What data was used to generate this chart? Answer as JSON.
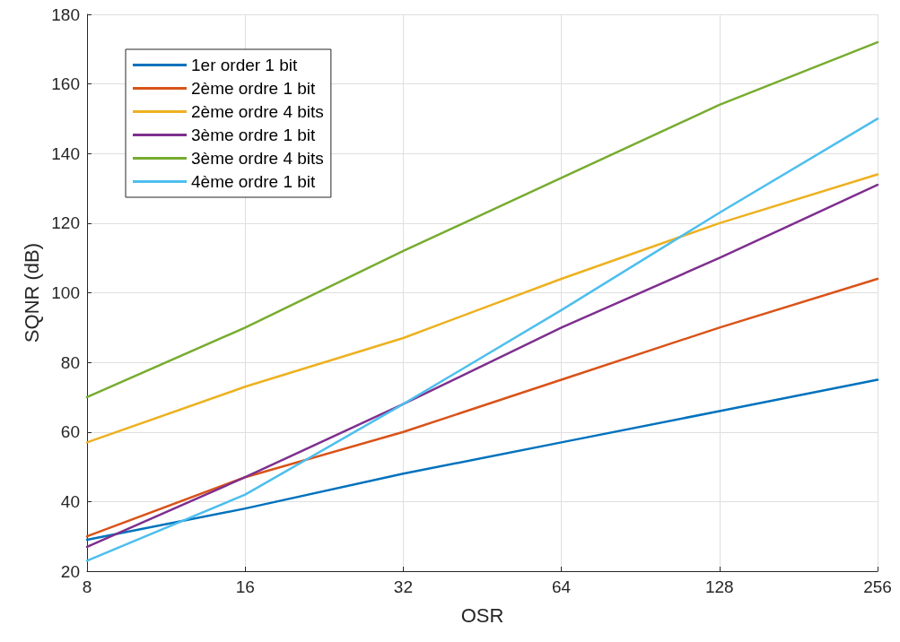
{
  "chart_data": {
    "type": "line",
    "xlabel": "OSR",
    "ylabel": "SQNR (dB)",
    "log": "x",
    "x": [
      8,
      16,
      32,
      64,
      128,
      256
    ],
    "xlim": [
      8,
      256
    ],
    "xticks": [
      8,
      16,
      32,
      64,
      128,
      256
    ],
    "ylim": [
      20,
      180
    ],
    "yticks": [
      20,
      40,
      60,
      80,
      100,
      120,
      140,
      160,
      180
    ],
    "grid": true,
    "legend": "top left",
    "marker": "none",
    "line_style": "solid",
    "series": [
      {
        "name": "1er order 1 bit",
        "color": "#0072bd",
        "values": [
          29,
          38,
          48,
          57,
          66,
          75
        ]
      },
      {
        "name": "2ème ordre 1 bit",
        "color": "#d95319",
        "values": [
          30,
          47,
          60,
          75,
          90,
          104
        ]
      },
      {
        "name": "2ème ordre 4 bits",
        "color": "#edb120",
        "values": [
          57,
          73,
          87,
          104,
          120,
          134
        ]
      },
      {
        "name": "3ème ordre 1 bit",
        "color": "#7e2f8e",
        "values": [
          27,
          47,
          68,
          90,
          110,
          131
        ]
      },
      {
        "name": "3ème ordre 4 bits",
        "color": "#77ac30",
        "values": [
          70,
          90,
          112,
          133,
          154,
          172
        ]
      },
      {
        "name": "4ème ordre 1 bit",
        "color": "#4dbeee",
        "values": [
          23,
          42,
          68,
          95,
          123,
          150
        ]
      }
    ]
  }
}
